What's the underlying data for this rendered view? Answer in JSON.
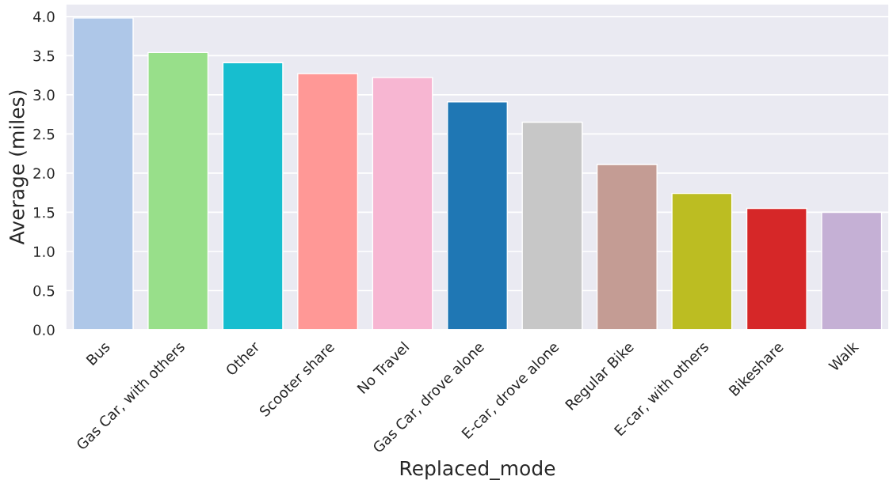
{
  "chart_data": {
    "type": "bar",
    "xlabel": "Replaced_mode",
    "ylabel": "Average (miles)",
    "categories": [
      "Bus",
      "Gas Car, with others",
      "Other",
      "Scooter share",
      "No Travel",
      "Gas Car, drove alone",
      "E-car, drove alone",
      "Regular Bike",
      "E-car, with others",
      "Bikeshare",
      "Walk"
    ],
    "values": [
      3.98,
      3.54,
      3.41,
      3.27,
      3.22,
      2.91,
      2.65,
      2.11,
      1.74,
      1.55,
      1.5
    ],
    "colors": [
      "#aec7e8",
      "#98df8a",
      "#17becf",
      "#ff9896",
      "#f7b6d2",
      "#1f77b4",
      "#c7c7c7",
      "#c49c94",
      "#bcbd22",
      "#d62728",
      "#c5b0d5"
    ],
    "ylim": [
      0,
      4.16
    ],
    "yticks": [
      {
        "value": 0,
        "label": "0.0"
      },
      {
        "value": 0.5,
        "label": "0.5"
      },
      {
        "value": 1,
        "label": "1.0"
      },
      {
        "value": 1.5,
        "label": "1.5"
      },
      {
        "value": 2,
        "label": "2.0"
      },
      {
        "value": 2.5,
        "label": "2.5"
      },
      {
        "value": 3,
        "label": "3.0"
      },
      {
        "value": 3.5,
        "label": "3.5"
      },
      {
        "value": 4,
        "label": "4.0"
      }
    ],
    "grid": "y"
  }
}
